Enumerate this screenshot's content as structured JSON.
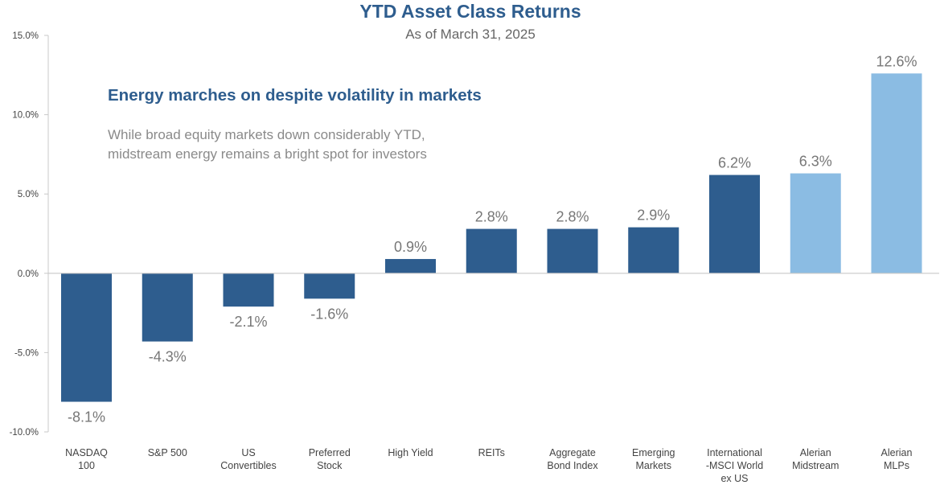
{
  "colors": {
    "title": "#2e5d8e",
    "subtitle": "#666666",
    "headline": "#2e5d8e",
    "body_text": "#8a8a8a",
    "dark_bar": "#2e5d8e",
    "light_bar": "#8bbce3",
    "axis": "#c8c8c8",
    "tick_text": "#444444",
    "category_text": "#444444",
    "data_label": "#777777"
  },
  "chart_data": {
    "type": "bar",
    "title": "YTD Asset Class Returns",
    "subtitle": "As of March 31, 2025",
    "annotation": {
      "headline": "Energy marches on despite volatility in markets",
      "lines": [
        "While broad equity markets down considerably YTD,",
        "midstream energy remains a bright spot for investors"
      ]
    },
    "ylim": [
      -10,
      15
    ],
    "yticks": [
      {
        "value": 15,
        "label": "15.0%"
      },
      {
        "value": 10,
        "label": "10.0%"
      },
      {
        "value": 5,
        "label": "5.0%"
      },
      {
        "value": 0,
        "label": "0.0%"
      },
      {
        "value": -5,
        "label": "-5.0%"
      },
      {
        "value": -10,
        "label": "-10.0%"
      }
    ],
    "grid": false,
    "bars": [
      {
        "category": [
          "NASDAQ",
          "100"
        ],
        "value": -8.1,
        "label": "-8.1%",
        "color": "dark"
      },
      {
        "category": [
          "S&P 500"
        ],
        "value": -4.3,
        "label": "-4.3%",
        "color": "dark"
      },
      {
        "category": [
          "US",
          "Convertibles"
        ],
        "value": -2.1,
        "label": "-2.1%",
        "color": "dark"
      },
      {
        "category": [
          "Preferred",
          "Stock"
        ],
        "value": -1.6,
        "label": "-1.6%",
        "color": "dark"
      },
      {
        "category": [
          "High Yield"
        ],
        "value": 0.9,
        "label": "0.9%",
        "color": "dark"
      },
      {
        "category": [
          "REITs"
        ],
        "value": 2.8,
        "label": "2.8%",
        "color": "dark"
      },
      {
        "category": [
          "Aggregate",
          "Bond Index"
        ],
        "value": 2.8,
        "label": "2.8%",
        "color": "dark"
      },
      {
        "category": [
          "Emerging",
          "Markets"
        ],
        "value": 2.9,
        "label": "2.9%",
        "color": "dark"
      },
      {
        "category": [
          "International",
          "-MSCI World",
          "ex US"
        ],
        "value": 6.2,
        "label": "6.2%",
        "color": "dark"
      },
      {
        "category": [
          "Alerian",
          "Midstream"
        ],
        "value": 6.3,
        "label": "6.3%",
        "color": "light"
      },
      {
        "category": [
          "Alerian",
          "MLPs"
        ],
        "value": 12.6,
        "label": "12.6%",
        "color": "light"
      }
    ]
  }
}
